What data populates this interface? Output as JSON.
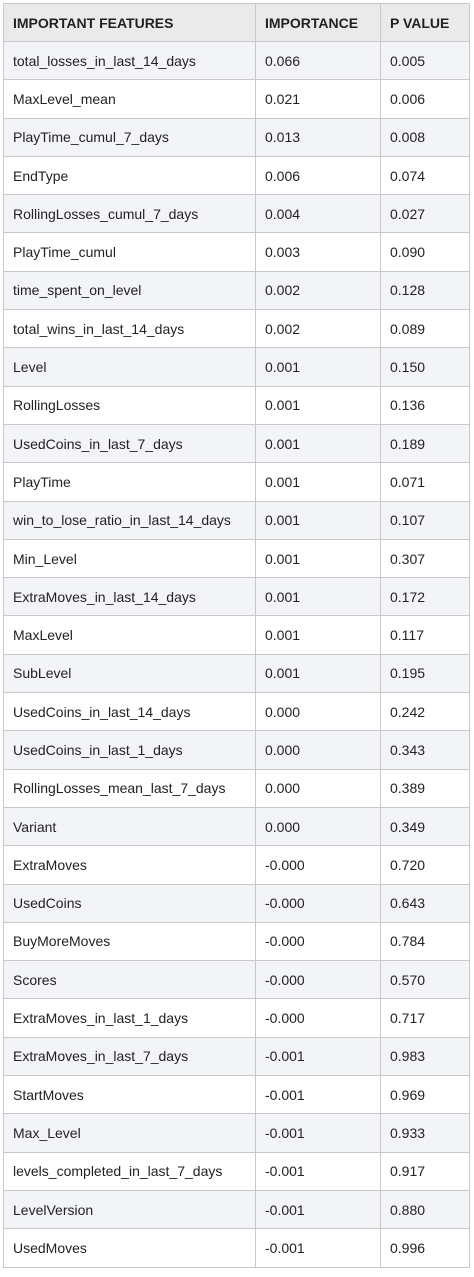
{
  "headers": [
    "IMPORTANT FEATURES",
    "IMPORTANCE",
    "P VALUE"
  ],
  "rows": [
    [
      "total_losses_in_last_14_days",
      "0.066",
      "0.005"
    ],
    [
      "MaxLevel_mean",
      "0.021",
      "0.006"
    ],
    [
      "PlayTime_cumul_7_days",
      "0.013",
      "0.008"
    ],
    [
      "EndType",
      "0.006",
      "0.074"
    ],
    [
      "RollingLosses_cumul_7_days",
      "0.004",
      "0.027"
    ],
    [
      "PlayTime_cumul",
      "0.003",
      "0.090"
    ],
    [
      "time_spent_on_level",
      "0.002",
      "0.128"
    ],
    [
      "total_wins_in_last_14_days",
      "0.002",
      "0.089"
    ],
    [
      "Level",
      "0.001",
      "0.150"
    ],
    [
      "RollingLosses",
      "0.001",
      "0.136"
    ],
    [
      "UsedCoins_in_last_7_days",
      "0.001",
      "0.189"
    ],
    [
      "PlayTime",
      "0.001",
      "0.071"
    ],
    [
      "win_to_lose_ratio_in_last_14_days",
      "0.001",
      "0.107"
    ],
    [
      "Min_Level",
      "0.001",
      "0.307"
    ],
    [
      "ExtraMoves_in_last_14_days",
      "0.001",
      "0.172"
    ],
    [
      "MaxLevel",
      "0.001",
      "0.117"
    ],
    [
      "SubLevel",
      "0.001",
      "0.195"
    ],
    [
      "UsedCoins_in_last_14_days",
      "0.000",
      "0.242"
    ],
    [
      "UsedCoins_in_last_1_days",
      "0.000",
      "0.343"
    ],
    [
      "RollingLosses_mean_last_7_days",
      "0.000",
      "0.389"
    ],
    [
      "Variant",
      "0.000",
      "0.349"
    ],
    [
      "ExtraMoves",
      "-0.000",
      "0.720"
    ],
    [
      "UsedCoins",
      "-0.000",
      "0.643"
    ],
    [
      "BuyMoreMoves",
      "-0.000",
      "0.784"
    ],
    [
      "Scores",
      "-0.000",
      "0.570"
    ],
    [
      "ExtraMoves_in_last_1_days",
      "-0.000",
      "0.717"
    ],
    [
      "ExtraMoves_in_last_7_days",
      "-0.001",
      "0.983"
    ],
    [
      "StartMoves",
      "-0.001",
      "0.969"
    ],
    [
      "Max_Level",
      "-0.001",
      "0.933"
    ],
    [
      "levels_completed_in_last_7_days",
      "-0.001",
      "0.917"
    ],
    [
      "LevelVersion",
      "-0.001",
      "0.880"
    ],
    [
      "UsedMoves",
      "-0.001",
      "0.996"
    ]
  ]
}
